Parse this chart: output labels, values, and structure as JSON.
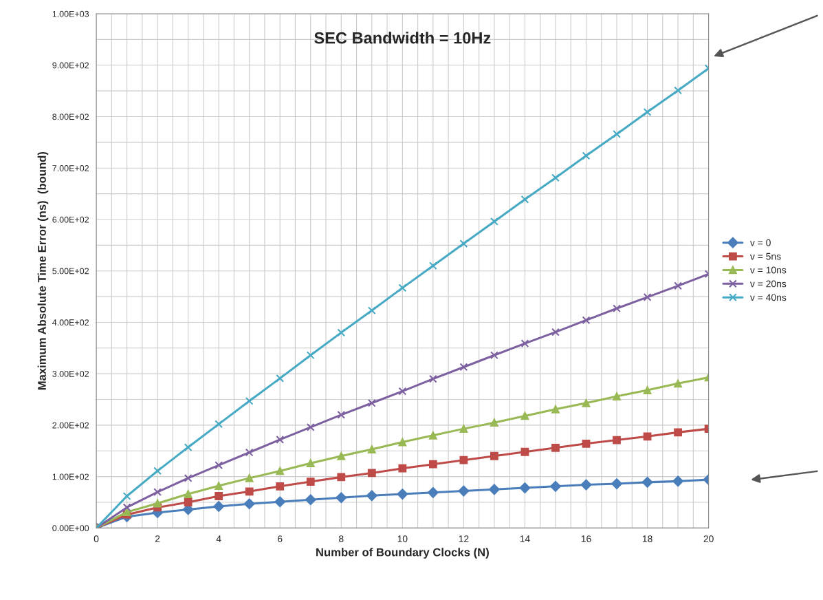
{
  "chart_data": {
    "type": "line",
    "title": "SEC Bandwidth = 10Hz",
    "xlabel": "Number of Boundary Clocks (N)",
    "ylabel": "Maximum Absolute Time Error (ns)  (bound)",
    "x": [
      0,
      1,
      2,
      3,
      4,
      5,
      6,
      7,
      8,
      9,
      10,
      11,
      12,
      13,
      14,
      15,
      16,
      17,
      18,
      19,
      20
    ],
    "xlim": [
      0,
      20
    ],
    "xticks": [
      0,
      2,
      4,
      6,
      8,
      10,
      12,
      14,
      16,
      18,
      20
    ],
    "ylim": [
      0,
      1000
    ],
    "yticks": [
      {
        "value": 0,
        "label": "0.00E+00"
      },
      {
        "value": 100,
        "label": "1.00E+02"
      },
      {
        "value": 200,
        "label": "2.00E+02"
      },
      {
        "value": 300,
        "label": "3.00E+02"
      },
      {
        "value": 400,
        "label": "4.00E+02"
      },
      {
        "value": 500,
        "label": "5.00E+02"
      },
      {
        "value": 600,
        "label": "6.00E+02"
      },
      {
        "value": 700,
        "label": "7.00E+02"
      },
      {
        "value": 800,
        "label": "8.00E+02"
      },
      {
        "value": 900,
        "label": "9.00E+02"
      },
      {
        "value": 1000,
        "label": "1.00E+03"
      }
    ],
    "grid": true,
    "legend": "right",
    "line_style": "solid",
    "series": [
      {
        "name": "v = 0",
        "color": "#4a7ebb",
        "marker": "diamond",
        "values": [
          0,
          22,
          30,
          36,
          42,
          47,
          51,
          55,
          59,
          63,
          66,
          69,
          72,
          75,
          78,
          81,
          84,
          86,
          89,
          91,
          94
        ]
      },
      {
        "name": "v = 5ns",
        "color": "#be4b48",
        "marker": "square",
        "values": [
          0,
          26,
          40,
          50,
          62,
          71,
          81,
          90,
          99,
          107,
          116,
          124,
          132,
          140,
          148,
          156,
          164,
          171,
          178,
          186,
          193
        ]
      },
      {
        "name": "v = 10ns",
        "color": "#98b954",
        "marker": "triangle",
        "values": [
          0,
          31,
          48,
          66,
          82,
          97,
          111,
          126,
          140,
          153,
          167,
          180,
          193,
          205,
          218,
          231,
          243,
          256,
          268,
          281,
          293
        ]
      },
      {
        "name": "v = 20ns",
        "color": "#7d60a0",
        "marker": "cross",
        "values": [
          0,
          40,
          70,
          97,
          122,
          147,
          172,
          196,
          220,
          243,
          266,
          290,
          313,
          336,
          359,
          381,
          404,
          427,
          449,
          471,
          494
        ]
      },
      {
        "name": "v = 40ns",
        "color": "#46aac5",
        "marker": "cross",
        "values": [
          0,
          62,
          111,
          157,
          202,
          247,
          291,
          336,
          380,
          423,
          467,
          510,
          553,
          596,
          639,
          681,
          724,
          766,
          809,
          851,
          894
        ]
      }
    ]
  }
}
